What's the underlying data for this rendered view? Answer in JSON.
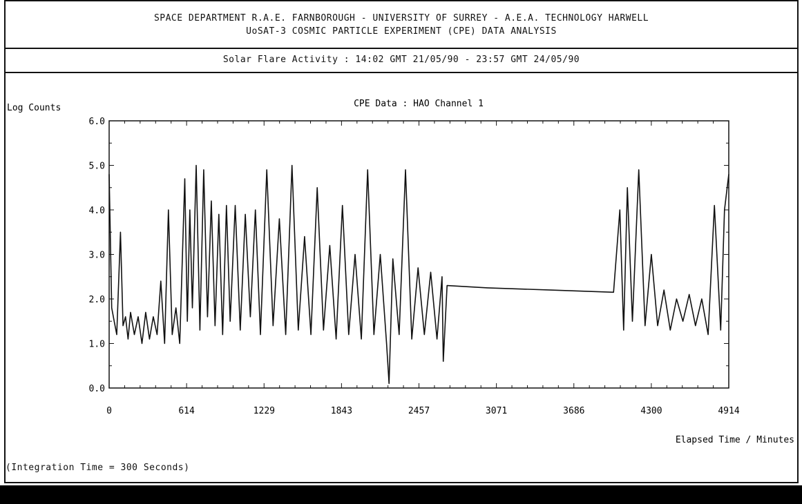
{
  "header": {
    "line1": "SPACE DEPARTMENT R.A.E. FARNBOROUGH - UNIVERSITY OF SURREY - A.E.A. TECHNOLOGY HARWELL",
    "line2": "UoSAT-3 COSMIC PARTICLE EXPERIMENT (CPE) DATA ANALYSIS",
    "subtitle": "Solar Flare Activity : 14:02 GMT 21/05/90 - 23:57 GMT 24/05/90"
  },
  "footer_note": "(Integration Time = 300 Seconds)",
  "colors": {
    "line": "#111111",
    "background": "#ffffff",
    "footer_bar": "#000000"
  },
  "chart_data": {
    "type": "line",
    "title": "CPE Data : HAO Channel 1",
    "ylabel": "Log Counts",
    "xlabel": "Elapsed Time / Minutes",
    "xlim": [
      0,
      4914
    ],
    "ylim": [
      0,
      6
    ],
    "x_ticks": [
      0,
      614,
      1229,
      1843,
      2457,
      3071,
      3686,
      4300,
      4914
    ],
    "y_ticks": [
      "0.0",
      "1.0",
      "2.0",
      "3.0",
      "4.0",
      "5.0",
      "6.0"
    ],
    "grid": false,
    "series": [
      {
        "x": [
          0,
          20,
          40,
          60,
          90,
          110,
          130,
          150,
          170,
          200,
          230,
          260,
          290,
          320,
          350,
          380,
          410,
          440,
          470,
          500,
          530,
          560,
          600,
          620,
          640,
          660,
          690,
          720,
          750,
          780,
          810,
          840,
          870,
          900,
          930,
          960,
          1000,
          1040,
          1080,
          1120,
          1160,
          1200,
          1250,
          1300,
          1350,
          1400,
          1450,
          1500,
          1550,
          1600,
          1650,
          1700,
          1750,
          1800,
          1850,
          1900,
          1950,
          2000,
          2050,
          2100,
          2150,
          2200,
          2220,
          2250,
          2300,
          2350,
          2400,
          2450,
          2500,
          2550,
          2600,
          2640,
          2650,
          2680,
          3000,
          3500,
          4000,
          4050,
          4080,
          4110,
          4150,
          4200,
          4250,
          4300,
          4350,
          4400,
          4450,
          4500,
          4550,
          4600,
          4650,
          4700,
          4750,
          4800,
          4850,
          4880,
          4914
        ],
        "y": [
          4.8,
          1.8,
          1.5,
          1.2,
          3.5,
          1.4,
          1.6,
          1.1,
          1.7,
          1.2,
          1.6,
          1.0,
          1.7,
          1.1,
          1.6,
          1.2,
          2.4,
          1.0,
          4.0,
          1.2,
          1.8,
          1.0,
          4.7,
          1.5,
          4.0,
          1.8,
          5.0,
          1.3,
          4.9,
          1.6,
          4.2,
          1.4,
          3.9,
          1.2,
          4.1,
          1.5,
          4.1,
          1.3,
          3.9,
          1.6,
          4.0,
          1.2,
          4.9,
          1.4,
          3.8,
          1.2,
          5.0,
          1.3,
          3.4,
          1.2,
          4.5,
          1.3,
          3.2,
          1.1,
          4.1,
          1.2,
          3.0,
          1.1,
          4.9,
          1.2,
          3.0,
          1.0,
          0.1,
          2.9,
          1.2,
          4.9,
          1.1,
          2.7,
          1.2,
          2.6,
          1.1,
          2.5,
          0.6,
          2.3,
          2.25,
          2.2,
          2.15,
          4.0,
          1.3,
          4.5,
          1.5,
          4.9,
          1.4,
          3.0,
          1.4,
          2.2,
          1.3,
          2.0,
          1.5,
          2.1,
          1.4,
          2.0,
          1.2,
          4.1,
          1.3,
          4.0,
          4.8
        ]
      }
    ]
  }
}
